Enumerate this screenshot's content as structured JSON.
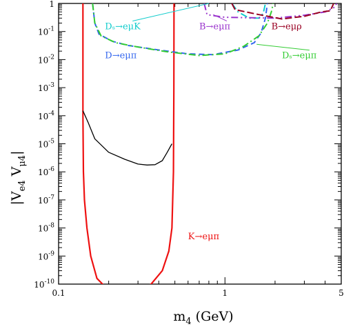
{
  "chart_data": {
    "type": "line",
    "xlabel": "m",
    "xlabel_sub": "4",
    "xlabel_unit": " (GeV)",
    "ylabel_parts": [
      "|V",
      "e4",
      " V",
      "μ4",
      "|"
    ],
    "xscale": "log",
    "yscale": "log",
    "xlim": [
      0.1,
      5
    ],
    "ylim": [
      1e-10,
      1
    ],
    "grid": false,
    "x_ticks": [
      {
        "value": 0.1,
        "label": "0.1"
      },
      {
        "value": 1,
        "label": "1"
      },
      {
        "value": 5,
        "label": "5"
      }
    ],
    "y_ticks": [
      {
        "value": 1,
        "base": "1",
        "exp": ""
      },
      {
        "value": 0.1,
        "base": "10",
        "exp": "-1"
      },
      {
        "value": 0.01,
        "base": "10",
        "exp": "-2"
      },
      {
        "value": 0.001,
        "base": "10",
        "exp": "-3"
      },
      {
        "value": 0.0001,
        "base": "10",
        "exp": "-4"
      },
      {
        "value": 1e-05,
        "base": "10",
        "exp": "-5"
      },
      {
        "value": 1e-06,
        "base": "10",
        "exp": "-6"
      },
      {
        "value": 1e-07,
        "base": "10",
        "exp": "-7"
      },
      {
        "value": 1e-08,
        "base": "10",
        "exp": "-8"
      },
      {
        "value": 1e-09,
        "base": "10",
        "exp": "-9"
      },
      {
        "value": 1e-10,
        "base": "10",
        "exp": "-10"
      }
    ],
    "series": [
      {
        "name": "K→eμπ",
        "color": "#ee1111",
        "dash": "solid",
        "points": [
          [
            0.14,
            1
          ],
          [
            0.14,
            0.0001
          ],
          [
            0.141,
            1e-06
          ],
          [
            0.143,
            1e-07
          ],
          [
            0.148,
            1e-08
          ],
          [
            0.156,
            1e-09
          ],
          [
            0.17,
            1.6e-10
          ],
          [
            0.2,
            6e-11
          ],
          [
            0.24,
            4e-11
          ],
          [
            0.3,
            5e-11
          ],
          [
            0.36,
            1e-10
          ],
          [
            0.42,
            3e-10
          ],
          [
            0.46,
            1.5e-09
          ],
          [
            0.48,
            1e-08
          ],
          [
            0.49,
            1e-06
          ],
          [
            0.493,
            0.001
          ],
          [
            0.494,
            1
          ]
        ]
      },
      {
        "name": "",
        "color": "#000000",
        "dash": "solid",
        "points": [
          [
            0.14,
            0.00015
          ],
          [
            0.15,
            6e-05
          ],
          [
            0.165,
            1.5e-05
          ],
          [
            0.2,
            5e-06
          ],
          [
            0.25,
            2.8e-06
          ],
          [
            0.3,
            1.9e-06
          ],
          [
            0.34,
            1.75e-06
          ],
          [
            0.38,
            1.8e-06
          ],
          [
            0.42,
            2.5e-06
          ],
          [
            0.45,
            5e-06
          ],
          [
            0.48,
            1e-05
          ]
        ]
      },
      {
        "name": "D→eμπ",
        "color": "#3366ee",
        "dash": "8,5",
        "points": [
          [
            0.16,
            1
          ],
          [
            0.165,
            0.2
          ],
          [
            0.175,
            0.08
          ],
          [
            0.21,
            0.045
          ],
          [
            0.26,
            0.032
          ],
          [
            0.4,
            0.022
          ],
          [
            0.6,
            0.016
          ],
          [
            0.85,
            0.015
          ],
          [
            1.2,
            0.022
          ],
          [
            1.5,
            0.04
          ],
          [
            1.65,
            0.09
          ],
          [
            1.75,
            0.3
          ],
          [
            1.8,
            1
          ]
        ]
      },
      {
        "name": "Dₛ→eμπ",
        "color": "#33cc33",
        "dash": "10,4,2,4",
        "points": [
          [
            0.16,
            1
          ],
          [
            0.165,
            0.2
          ],
          [
            0.18,
            0.07
          ],
          [
            0.22,
            0.04
          ],
          [
            0.3,
            0.028
          ],
          [
            0.45,
            0.019
          ],
          [
            0.7,
            0.014
          ],
          [
            1.0,
            0.016
          ],
          [
            1.3,
            0.03
          ],
          [
            1.6,
            0.07
          ],
          [
            1.8,
            0.2
          ],
          [
            1.9,
            0.5
          ],
          [
            1.95,
            1
          ]
        ]
      },
      {
        "name": "Dₛ→eμK",
        "color": "#11cccc",
        "dash": "10,4,2,4",
        "points": [
          [
            1.1,
            1
          ],
          [
            1.2,
            0.5
          ],
          [
            1.4,
            0.3
          ],
          [
            1.6,
            0.3
          ],
          [
            1.7,
            0.45
          ],
          [
            1.75,
            1
          ]
        ]
      },
      {
        "name": "B→eμπ",
        "color": "#9933cc",
        "dash": "10,4,2,4,2,4",
        "points": [
          [
            0.75,
            1
          ],
          [
            0.78,
            0.4
          ],
          [
            1.0,
            0.32
          ],
          [
            2.0,
            0.3
          ],
          [
            3.0,
            0.38
          ],
          [
            4.0,
            0.5
          ],
          [
            4.5,
            0.7
          ],
          [
            4.7,
            1
          ]
        ]
      },
      {
        "name": "B→eμρ",
        "color": "#990022",
        "dash": "10,4",
        "points": [
          [
            1.1,
            1
          ],
          [
            1.15,
            0.6
          ],
          [
            1.6,
            0.4
          ],
          [
            2.2,
            0.28
          ],
          [
            3.0,
            0.35
          ],
          [
            3.8,
            0.5
          ],
          [
            4.3,
            0.55
          ],
          [
            4.5,
            1
          ]
        ]
      }
    ],
    "annotations": [
      {
        "text": "Dₛ→eμK",
        "color": "#11cccc",
        "x": 0.19,
        "y": 0.12,
        "anchor": "start",
        "arrow_to": [
          0.8,
          1.0
        ]
      },
      {
        "text": "B→eμπ",
        "color": "#9933cc",
        "x": 0.7,
        "y": 0.12,
        "anchor": "start",
        "arrow_to": [
          0.85,
          0.4
        ]
      },
      {
        "text": "B→eμρ",
        "color": "#990022",
        "x": 1.9,
        "y": 0.12,
        "anchor": "start"
      },
      {
        "text": "D→eμπ",
        "color": "#3366ee",
        "x": 0.19,
        "y": 0.011,
        "anchor": "start"
      },
      {
        "text": "Dₛ→eμπ",
        "color": "#33cc33",
        "x": 2.2,
        "y": 0.011,
        "anchor": "start",
        "arrow_to": [
          1.55,
          0.035
        ]
      },
      {
        "text": "K→eμπ",
        "color": "#ee1111",
        "x": 0.6,
        "y": 4e-09,
        "anchor": "start"
      }
    ]
  }
}
